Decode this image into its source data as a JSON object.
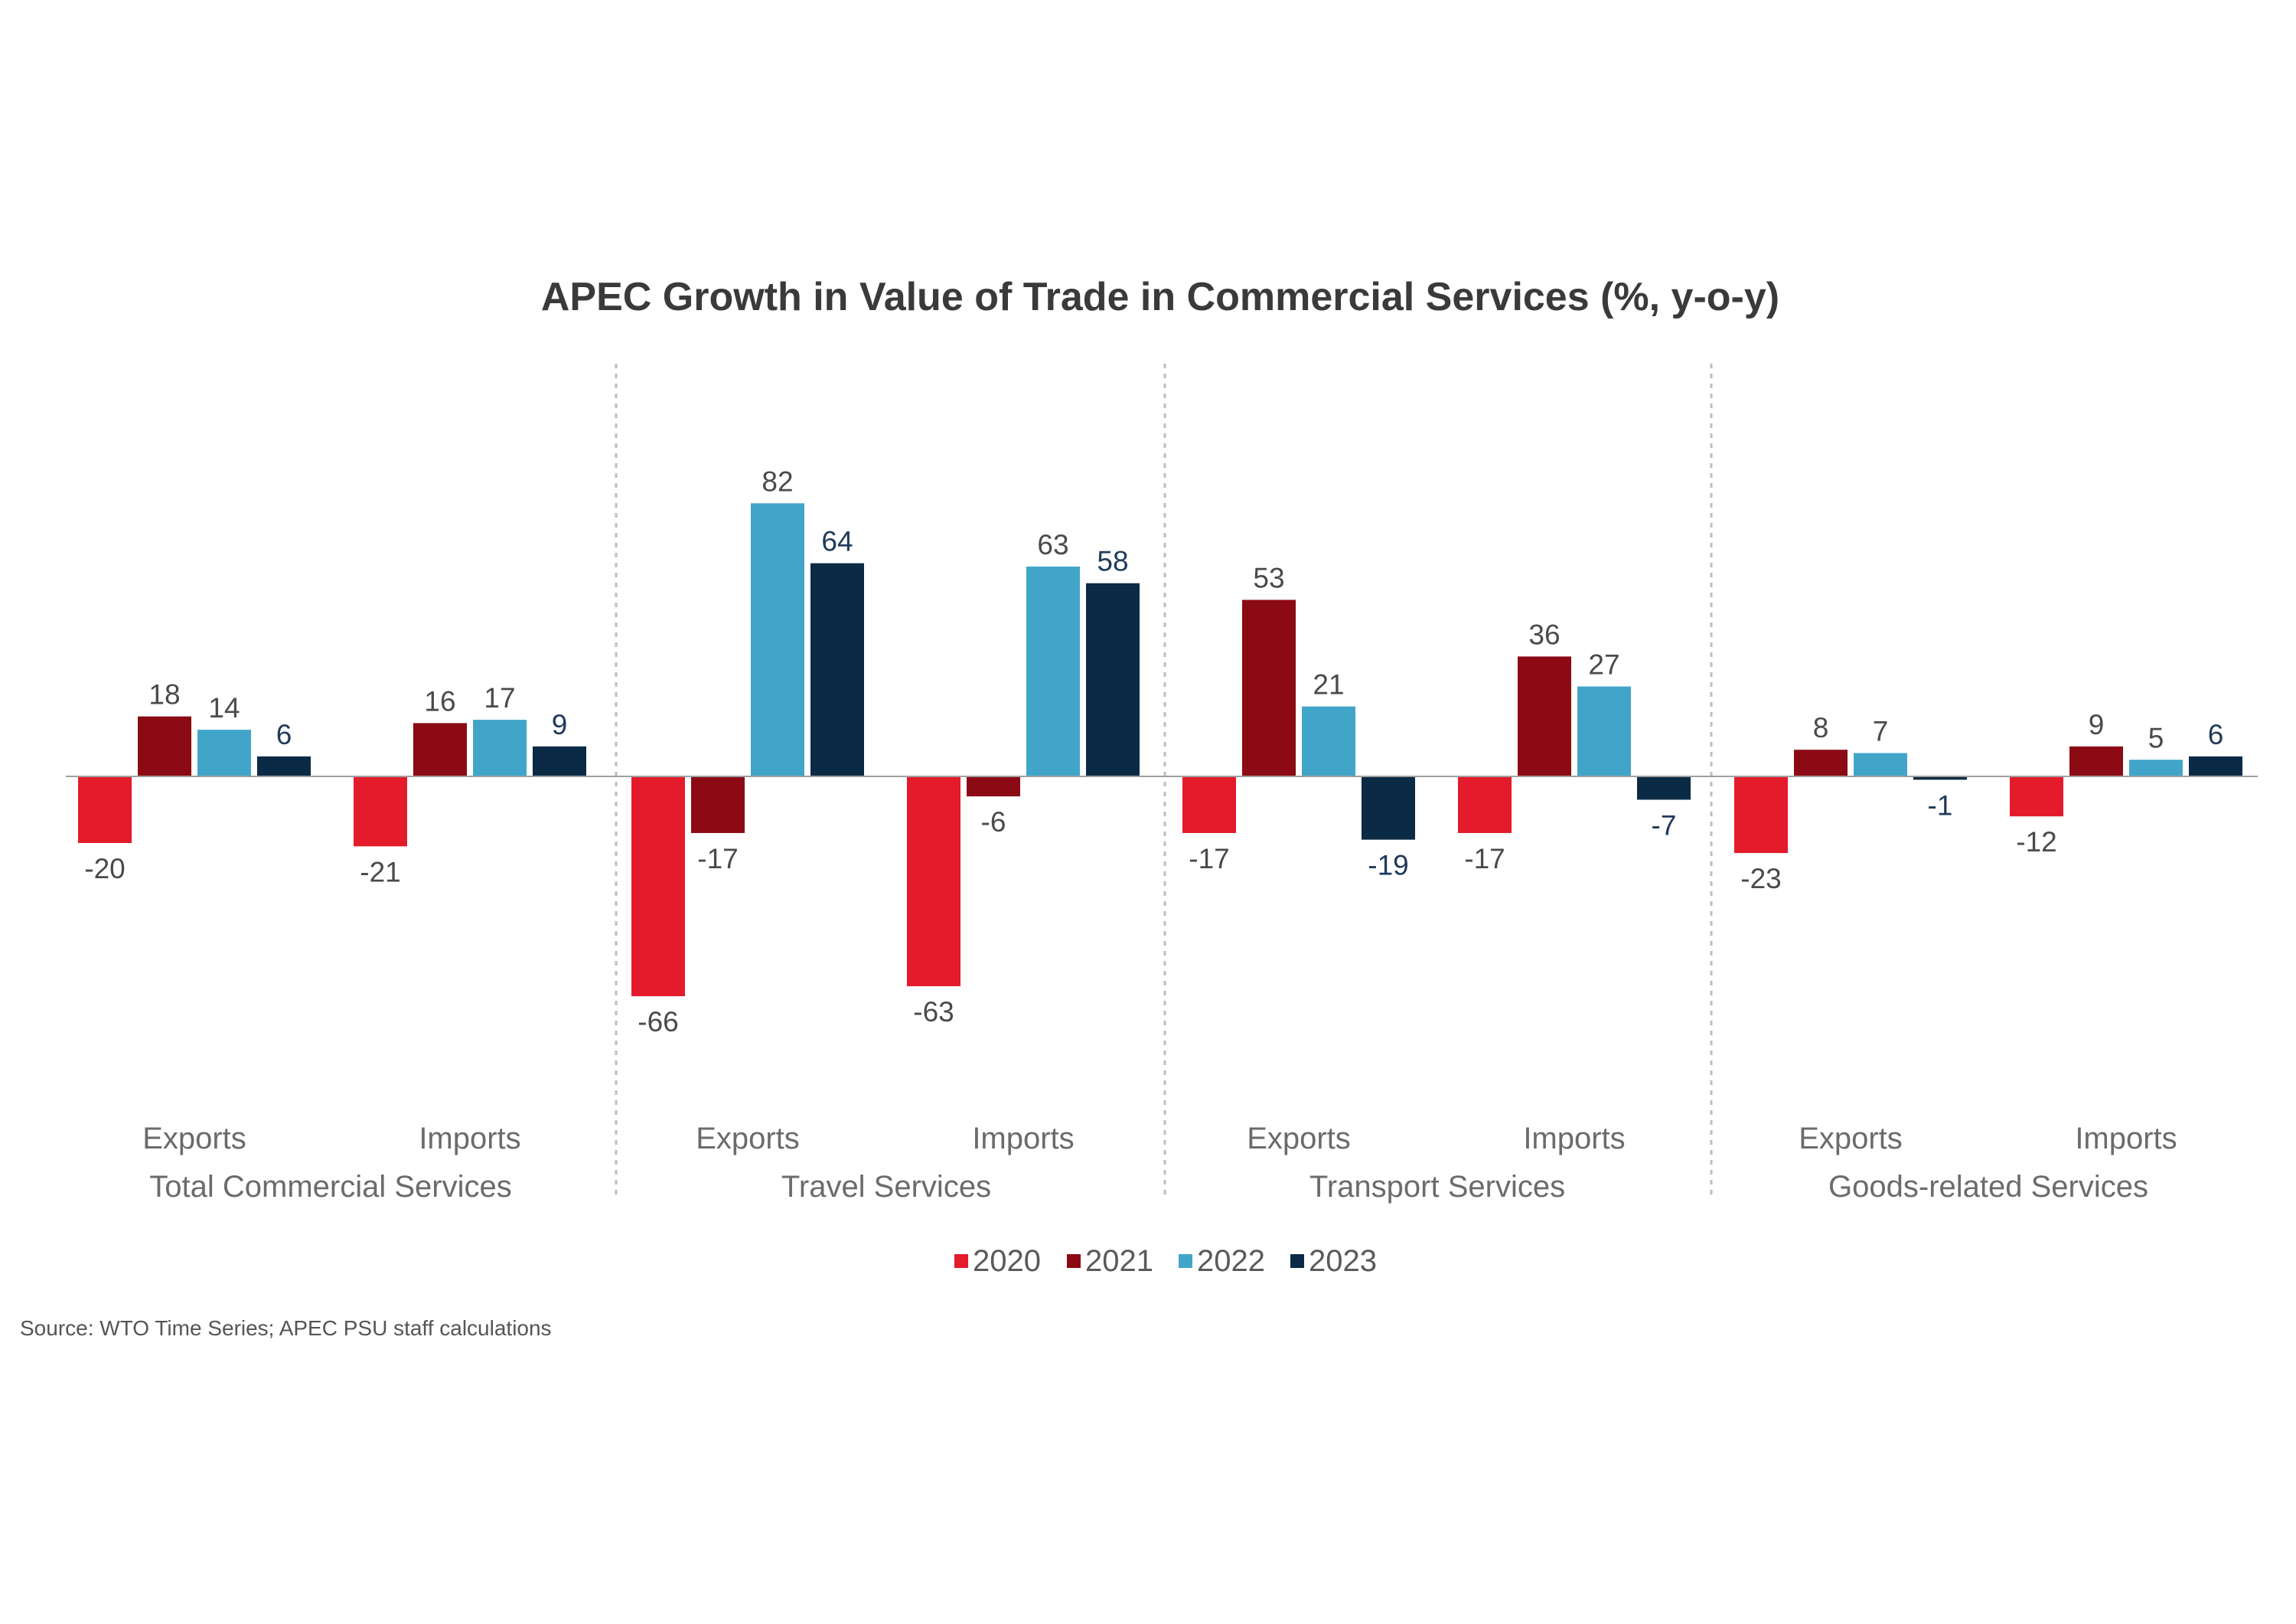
{
  "chart_data": {
    "type": "bar",
    "title": "APEC Growth in Value of Trade in Commercial Services (%, y-o-y)",
    "groups": [
      {
        "name": "Total Commercial Services",
        "categories": [
          "Exports",
          "Imports"
        ]
      },
      {
        "name": "Travel Services",
        "categories": [
          "Exports",
          "Imports"
        ]
      },
      {
        "name": "Transport Services",
        "categories": [
          "Exports",
          "Imports"
        ]
      },
      {
        "name": "Goods-related Services",
        "categories": [
          "Exports",
          "Imports"
        ]
      }
    ],
    "series": [
      {
        "name": "2020",
        "color": "#e41b2b",
        "values": [
          -20,
          -21,
          -66,
          -63,
          -17,
          -17,
          -23,
          -12
        ]
      },
      {
        "name": "2021",
        "color": "#8b0a14",
        "values": [
          18,
          16,
          -17,
          -6,
          53,
          36,
          8,
          9
        ]
      },
      {
        "name": "2022",
        "color": "#41a5c9",
        "values": [
          14,
          17,
          82,
          63,
          21,
          27,
          7,
          5
        ]
      },
      {
        "name": "2023",
        "color": "#0b2a45",
        "values": [
          6,
          9,
          64,
          58,
          -19,
          -7,
          -1,
          6
        ]
      }
    ],
    "ylim": [
      -70,
      85
    ],
    "grid": false,
    "legend_position": "bottom",
    "source": "Source: WTO Time Series; APEC PSU staff calculations"
  }
}
